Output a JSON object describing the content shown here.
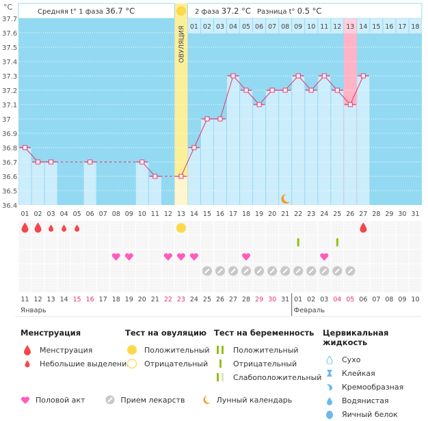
{
  "header": {
    "unit_label": "°C",
    "phase1_text": "Средняя t° 1 фаза",
    "phase1_value": "36.7 °C",
    "phase2_text": "2 фаза",
    "phase2_value": "37.2 °C",
    "diff_text": "Разница t°",
    "diff_value": "0.5 °C",
    "ovulation_label": "ОВУЛЯЦИЯ"
  },
  "colors": {
    "chart_bg": "#93d9f2",
    "bar_fill": "#ccedfb",
    "line": "#e8336b",
    "ovulation_band": "#fbef9a",
    "highlight_day": "#ffb3c6",
    "weekend_text": "#e8336b",
    "menstruation": "#f4474a",
    "heart": "#ff5cbd",
    "pill": "#c8c8c8",
    "ovulation_test": "#fcd94a",
    "pregnancy_test": "#8fc110",
    "moon": "#f29b1c",
    "fluid": "#6cb8ec"
  },
  "chart_data": {
    "type": "line",
    "title": "",
    "ylabel": "°C",
    "ylim": [
      36.4,
      37.7
    ],
    "yticks": [
      "37.7",
      "37.6",
      "37.5",
      "37.4",
      "37.3",
      "37.2",
      "37.1",
      "37",
      "36.9",
      "36.8",
      "36.7",
      "36.6",
      "36.5",
      "36.4"
    ],
    "cycle_days": [
      "01",
      "02",
      "03",
      "04",
      "05",
      "06",
      "07",
      "08",
      "09",
      "10",
      "11",
      "12",
      "13",
      "14",
      "15",
      "16",
      "17",
      "18",
      "19",
      "20",
      "21",
      "22",
      "23",
      "24",
      "25",
      "26",
      "27",
      "28",
      "29",
      "30",
      "31"
    ],
    "phase2_days": [
      "01",
      "02",
      "03",
      "04",
      "05",
      "06",
      "07",
      "08",
      "09",
      "10",
      "11",
      "12",
      "13",
      "14",
      "15",
      "16",
      "17",
      "18"
    ],
    "phase2_highlight_day": "13",
    "ovulation_day": 13,
    "temperature": [
      36.8,
      36.7,
      36.7,
      null,
      null,
      36.7,
      null,
      null,
      null,
      36.7,
      36.6,
      null,
      36.6,
      36.8,
      37.0,
      37.0,
      37.3,
      37.2,
      37.1,
      37.2,
      37.2,
      37.3,
      37.2,
      37.3,
      37.2,
      37.1,
      37.3,
      null,
      null,
      null,
      null
    ],
    "calendar_dates": [
      "11",
      "12",
      "13",
      "14",
      "15",
      "16",
      "17",
      "18",
      "19",
      "20",
      "21",
      "22",
      "23",
      "24",
      "25",
      "26",
      "27",
      "28",
      "29",
      "30",
      "31",
      "01",
      "02",
      "03",
      "04",
      "05",
      "06",
      "07",
      "08",
      "09",
      "10"
    ],
    "weekend_dates_index": [
      4,
      5,
      11,
      12,
      18,
      19,
      24,
      25
    ],
    "months": [
      {
        "label": "Январь",
        "start_index": 1
      },
      {
        "label": "Февраль",
        "start_index": 22
      }
    ],
    "events": {
      "menstruation": {
        "1": "heavy",
        "2": "heavy",
        "3": "light",
        "4": "light",
        "5": "light",
        "27": "heavy"
      },
      "ovulation_test_positive": [
        13
      ],
      "pregnancy_test_negative": [
        22,
        25
      ],
      "intercourse": [
        8,
        9,
        12,
        13,
        14,
        18,
        24
      ],
      "medication": [
        15,
        16,
        17,
        18,
        19,
        20,
        21,
        22,
        23,
        24,
        25,
        26
      ],
      "moon": [
        21
      ]
    }
  },
  "legend": {
    "menstruation": {
      "title": "Менструация",
      "items": [
        "Менструация",
        "Небольшие выделения"
      ]
    },
    "ovulation_test": {
      "title": "Тест на овуляцию",
      "items": [
        "Положительный",
        "Отрицательный"
      ]
    },
    "pregnancy_test": {
      "title": "Тест на беременность",
      "items": [
        "Положительный",
        "Отрицательный",
        "Слабоположительный"
      ]
    },
    "cervical_fluid": {
      "title": "Цервикальная жидкость",
      "items": [
        "Сухо",
        "Клейкая",
        "Кремообразная",
        "Водянистая",
        "Яичный белок"
      ]
    },
    "bottom": [
      "Половой акт",
      "Прием лекарств",
      "Лунный календарь"
    ]
  }
}
